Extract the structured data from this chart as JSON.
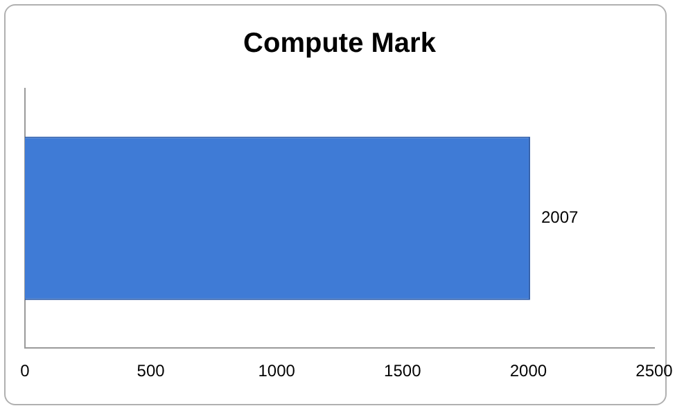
{
  "chart_data": {
    "type": "bar",
    "title": "Compute Mark",
    "orientation": "horizontal",
    "categories": [
      null
    ],
    "values": [
      2007
    ],
    "color": "#3f7bd6",
    "xlim": [
      0,
      2500
    ],
    "xticks": [
      0,
      500,
      1000,
      1500,
      2000,
      2500
    ],
    "grid": false,
    "data_labels": true,
    "legend": false
  }
}
